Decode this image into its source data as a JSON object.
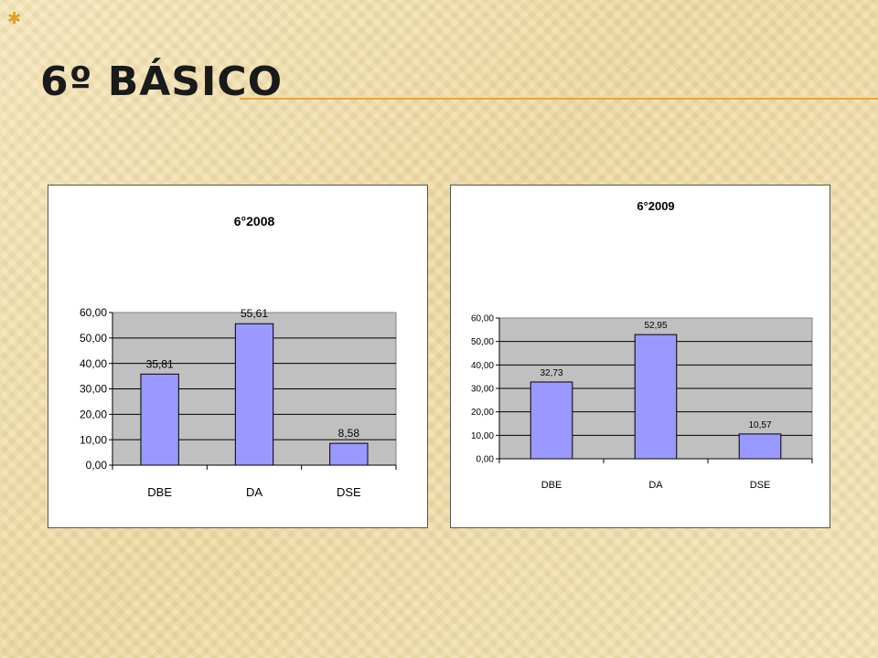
{
  "slide": {
    "title_mark": "✱",
    "title": "6º básico"
  },
  "colors": {
    "bar_fill": "#9999ff",
    "plot_bg": "#c0c0c0",
    "title_rule": "#e9a640"
  },
  "chart_data": [
    {
      "type": "bar",
      "title": "6°2008",
      "categories": [
        "DBE",
        "DA",
        "DSE"
      ],
      "values": [
        35.81,
        55.61,
        8.58
      ],
      "data_labels": [
        "35,81",
        "55,61",
        "8,58"
      ],
      "yticks": [
        "0,00",
        "10,00",
        "20,00",
        "30,00",
        "40,00",
        "50,00",
        "60,00"
      ],
      "ylim": [
        0,
        60
      ],
      "grid": true,
      "legend": "none"
    },
    {
      "type": "bar",
      "title": "6°2009",
      "categories": [
        "DBE",
        "DA",
        "DSE"
      ],
      "values": [
        32.73,
        52.95,
        10.57
      ],
      "data_labels": [
        "32,73",
        "52,95",
        "10,57"
      ],
      "yticks": [
        "0,00",
        "10,00",
        "20,00",
        "30,00",
        "40,00",
        "50,00",
        "60,00"
      ],
      "ylim": [
        0,
        60
      ],
      "grid": true,
      "legend": "none"
    }
  ]
}
